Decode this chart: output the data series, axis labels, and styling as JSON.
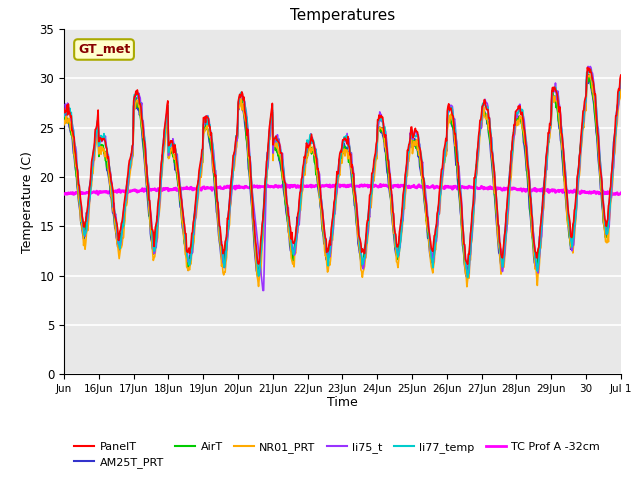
{
  "title": "Temperatures",
  "xlabel": "Time",
  "ylabel": "Temperature (C)",
  "ylim": [
    0,
    35
  ],
  "plot_bg_color": "#e8e8e8",
  "grid_color": "white",
  "annotation_text": "GT_met",
  "series": [
    {
      "label": "PanelT",
      "color": "#ff0000",
      "lw": 1.2,
      "zorder": 5
    },
    {
      "label": "AM25T_PRT",
      "color": "#3333cc",
      "lw": 1.2,
      "zorder": 4
    },
    {
      "label": "AirT",
      "color": "#00cc00",
      "lw": 1.2,
      "zorder": 4
    },
    {
      "label": "NR01_PRT",
      "color": "#ffaa00",
      "lw": 1.2,
      "zorder": 4
    },
    {
      "label": "li75_t",
      "color": "#9933ff",
      "lw": 1.2,
      "zorder": 4
    },
    {
      "label": "li77_temp",
      "color": "#00cccc",
      "lw": 1.2,
      "zorder": 4
    },
    {
      "label": "TC Prof A -32cm",
      "color": "#ff00ff",
      "lw": 2.0,
      "zorder": 3
    }
  ],
  "xtick_labels": [
    "Jun",
    "16Jun",
    "17Jun",
    "18Jun",
    "19Jun",
    "20Jun",
    "21Jun",
    "22Jun",
    "23Jun",
    "24Jun",
    "25Jun",
    "26Jun",
    "27Jun",
    "28Jun",
    "29Jun",
    "30",
    "Jul 1"
  ],
  "ytick_values": [
    0,
    5,
    10,
    15,
    20,
    25,
    30,
    35
  ],
  "figsize": [
    6.4,
    4.8
  ],
  "dpi": 100
}
